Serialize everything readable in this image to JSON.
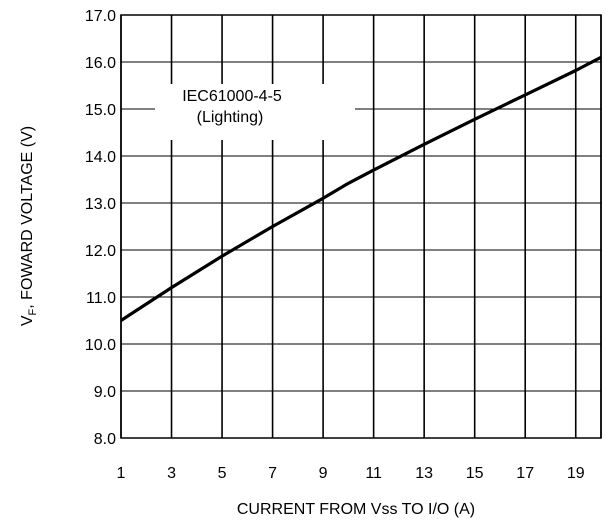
{
  "chart_data": {
    "type": "line",
    "title": "",
    "xlabel": "CURRENT FROM Vss TO I/O (A)",
    "ylabel": {
      "prefix": "V",
      "subscript": "F",
      "rest": ", FOWARD VOLTAGE (V)"
    },
    "xlim": [
      1,
      20
    ],
    "ylim": [
      8.0,
      17.0
    ],
    "x_ticks": [
      1,
      3,
      5,
      7,
      9,
      11,
      13,
      15,
      17,
      19
    ],
    "y_ticks": [
      8.0,
      9.0,
      10.0,
      11.0,
      12.0,
      13.0,
      14.0,
      15.0,
      16.0,
      17.0
    ],
    "vertical_grid_x": [
      1,
      3,
      5,
      7,
      9,
      11,
      13,
      15,
      17,
      19,
      20
    ],
    "grid": true,
    "annotation": {
      "lines": [
        "IEC61000-4-5",
        "(Lighting)"
      ]
    },
    "series": [
      {
        "x": [
          1,
          3,
          5,
          7,
          9,
          10,
          11,
          13,
          15,
          17,
          19,
          20
        ],
        "y": [
          10.5,
          11.2,
          11.87,
          12.5,
          13.1,
          13.42,
          13.7,
          14.25,
          14.78,
          15.3,
          15.82,
          16.1
        ]
      }
    ]
  }
}
